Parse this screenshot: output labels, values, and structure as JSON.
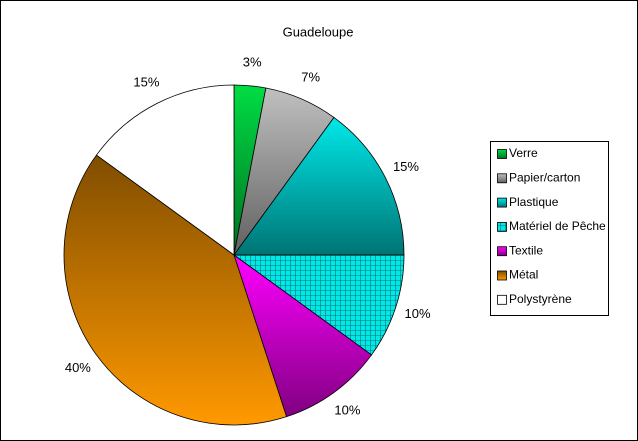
{
  "chart_data": {
    "type": "pie",
    "title": "Guadeloupe",
    "categories": [
      "Verre",
      "Papier/carton",
      "Plastique",
      "Matériel de Pêche",
      "Textile",
      "Métal",
      "Polystyrène"
    ],
    "values": [
      3,
      7,
      15,
      10,
      10,
      40,
      15
    ],
    "value_labels": [
      "3%",
      "7%",
      "15%",
      "10%",
      "10%",
      "40%",
      "15%"
    ],
    "colors": [
      "#00dd44",
      "#c0c0c0",
      "#00e8e8",
      "#00e8e8",
      "#ff00ff",
      "#ff9900",
      "#ffffff"
    ],
    "hatched": [
      false,
      false,
      false,
      true,
      false,
      false,
      false
    ],
    "legend": "right"
  }
}
